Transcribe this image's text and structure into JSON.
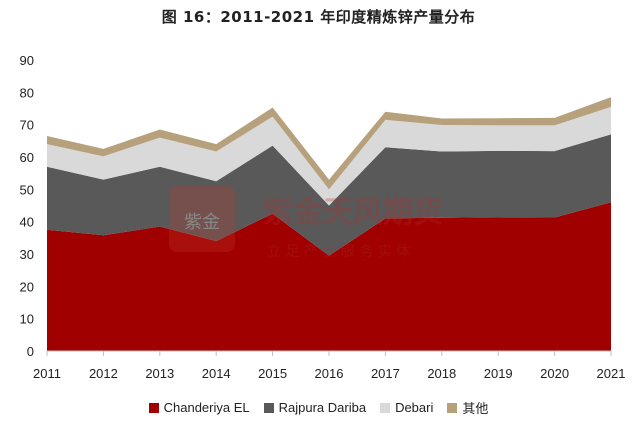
{
  "title": "图 16：2011-2021 年印度精炼锌产量分布",
  "chart_data": {
    "type": "area",
    "stacked": true,
    "x": [
      "2011",
      "2012",
      "2013",
      "2014",
      "2015",
      "2016",
      "2017",
      "2018",
      "2019",
      "2020",
      "2021"
    ],
    "ylim": [
      0,
      90
    ],
    "yticks": [
      0,
      10,
      20,
      30,
      40,
      50,
      60,
      70,
      80,
      90
    ],
    "grid": false,
    "legend_position": "bottom",
    "series": [
      {
        "name": "Chanderiya EL",
        "color": "#a00000",
        "values": [
          37.5,
          35.8,
          38.5,
          34.0,
          42.5,
          29.5,
          41.0,
          41.2,
          41.4,
          41.3,
          46.0
        ]
      },
      {
        "name": "Rajpura Dariba",
        "color": "#595959",
        "values": [
          19.5,
          17.2,
          18.5,
          18.5,
          21.0,
          15.5,
          22.0,
          20.5,
          20.5,
          20.5,
          21.0
        ]
      },
      {
        "name": "Debari",
        "color": "#d9d9d9",
        "values": [
          7.0,
          7.2,
          9.0,
          9.2,
          9.0,
          5.0,
          8.5,
          8.2,
          7.9,
          8.0,
          8.5
        ]
      },
      {
        "name": "其他",
        "color": "#b7a17c",
        "values": [
          2.5,
          2.3,
          2.5,
          2.3,
          2.8,
          3.0,
          2.5,
          2.0,
          2.2,
          2.3,
          3.0
        ]
      }
    ]
  },
  "watermark": {
    "name": "紫金天风期货",
    "slogan": "立 足 产 业   服 务 实 体"
  }
}
